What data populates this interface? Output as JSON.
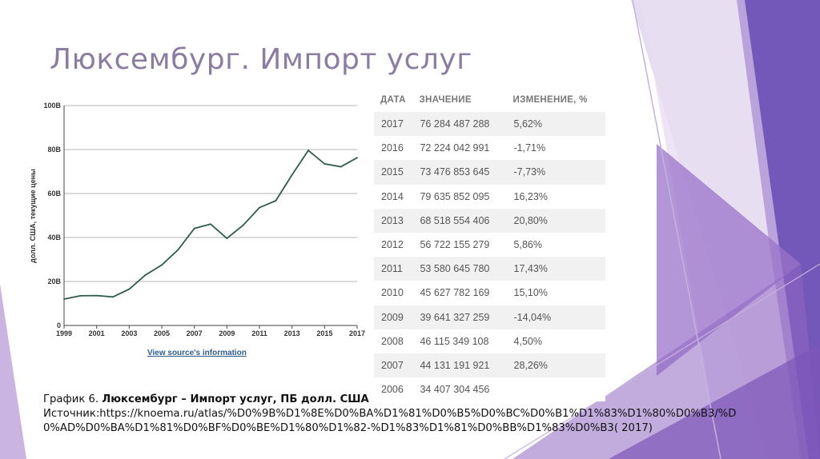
{
  "slide": {
    "title": "Люксембург. Импорт услуг",
    "colors": {
      "title": "#8b7ca1",
      "accent_purple": "#7b4fb0",
      "line": "#2f5b4f"
    }
  },
  "chart_data": {
    "type": "line",
    "title": "",
    "xlabel": "",
    "ylabel": "долл. США, текущие цены",
    "x": [
      1999,
      2000,
      2001,
      2002,
      2003,
      2004,
      2005,
      2006,
      2007,
      2008,
      2009,
      2010,
      2011,
      2012,
      2013,
      2014,
      2015,
      2016,
      2017
    ],
    "series": [
      {
        "values": [
          12.0,
          13.5,
          13.6,
          13.0,
          16.5,
          23.0,
          27.5,
          34.4,
          44.1,
          46.1,
          39.6,
          45.6,
          53.6,
          56.7,
          68.5,
          79.6,
          73.5,
          72.2,
          76.3
        ]
      }
    ],
    "xticks": [
      "1999",
      "2001",
      "2003",
      "2005",
      "2007",
      "2009",
      "2011",
      "2013",
      "2015",
      "2017"
    ],
    "yticks": [
      "0",
      "20B",
      "40B",
      "60B",
      "80B",
      "100B"
    ],
    "ylim": [
      0,
      100
    ],
    "xlim": [
      1999,
      2017
    ],
    "grid": true,
    "source_link": "View source's information"
  },
  "table": {
    "headers": [
      "ДАТА",
      "ЗНАЧЕНИЕ",
      "ИЗМЕНЕНИЕ, %"
    ],
    "rows": [
      [
        "2017",
        "76 284 487 288",
        "5,62%"
      ],
      [
        "2016",
        "72 224 042 991",
        "-1,71%"
      ],
      [
        "2015",
        "73 476 853 645",
        "-7,73%"
      ],
      [
        "2014",
        "79 635 852 095",
        "16,23%"
      ],
      [
        "2013",
        "68 518 554 406",
        "20,80%"
      ],
      [
        "2012",
        "56 722 155 279",
        "5,86%"
      ],
      [
        "2011",
        "53 580 645 780",
        "17,43%"
      ],
      [
        "2010",
        "45 627 782 169",
        "15,10%"
      ],
      [
        "2009",
        "39 641 327 259",
        "-14,04%"
      ],
      [
        "2008",
        "46 115 349 108",
        "4,50%"
      ],
      [
        "2007",
        "44 131 191 921",
        "28,26%"
      ],
      [
        "2006",
        "34 407 304 456",
        ""
      ]
    ]
  },
  "caption": {
    "prefix": "График 6. ",
    "bold": "Люксембург – Импорт услуг, ПБ долл. США",
    "source": "Источник:https://knoema.ru/atlas/%D0%9B%D1%8E%D0%BA%D1%81%D0%B5%D0%BC%D0%B1%D1%83%D1%80%D0%B3/%D0%AD%D0%BA%D1%81%D0%BF%D0%BE%D1%80%D1%82-%D1%83%D1%81%D0%BB%D1%83%D0%B3( 2017)"
  }
}
